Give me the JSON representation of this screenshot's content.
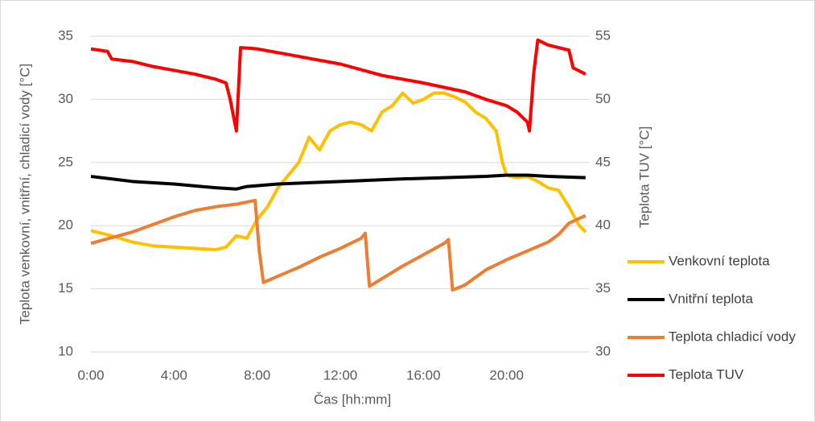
{
  "chart_data": {
    "type": "line",
    "xlabel": "Čas [hh:mm]",
    "ylabel": "Teplota venkovní, vnitřní, chladicí vody [°C]",
    "y2label": "Teplota TUV [°C]",
    "xlim": [
      0,
      24
    ],
    "xticks": [
      {
        "value": 0,
        "label": "0:00"
      },
      {
        "value": 4,
        "label": "4:00"
      },
      {
        "value": 8,
        "label": "8:00"
      },
      {
        "value": 12,
        "label": "12:00"
      },
      {
        "value": 16,
        "label": "16:00"
      },
      {
        "value": 20,
        "label": "20:00"
      }
    ],
    "ylim": [
      10,
      35
    ],
    "yticks": [
      10,
      15,
      20,
      25,
      30,
      35
    ],
    "y2lim": [
      30,
      55
    ],
    "y2ticks": [
      30,
      35,
      40,
      45,
      50,
      55
    ],
    "grid": true,
    "legend": "right",
    "series": [
      {
        "name": "Venkovní teplota",
        "color": "#ffc000",
        "x": [
          0,
          1,
          2,
          3,
          4,
          5,
          6,
          6.5,
          7,
          7.5,
          8,
          8.5,
          9,
          9.5,
          10,
          10.5,
          11,
          11.5,
          12,
          12.5,
          13,
          13.5,
          14,
          14.5,
          15,
          15.5,
          16,
          16.5,
          17,
          17.5,
          18,
          18.5,
          19,
          19.5,
          19.8,
          20,
          20.5,
          21,
          21.5,
          22,
          22.5,
          23,
          23.5,
          23.8
        ],
        "values": [
          19.6,
          19.2,
          18.7,
          18.4,
          18.3,
          18.2,
          18.1,
          18.3,
          19.2,
          19.0,
          20.5,
          21.5,
          23.0,
          24.0,
          25.0,
          27.0,
          26.0,
          27.5,
          28.0,
          28.2,
          28.0,
          27.5,
          29.0,
          29.5,
          30.5,
          29.7,
          30.0,
          30.5,
          30.5,
          30.2,
          29.8,
          29.0,
          28.5,
          27.5,
          25.0,
          24.0,
          23.8,
          23.9,
          23.5,
          23.0,
          22.8,
          21.5,
          20.0,
          19.5
        ]
      },
      {
        "name": "Vnitřní teplota",
        "color": "#000000",
        "x": [
          0,
          2,
          4,
          6,
          7,
          7.5,
          9,
          12,
          15,
          17,
          19,
          20,
          21,
          22,
          23.8
        ],
        "values": [
          23.9,
          23.5,
          23.3,
          23.0,
          22.9,
          23.1,
          23.3,
          23.5,
          23.7,
          23.8,
          23.9,
          24.0,
          24.0,
          23.9,
          23.8
        ]
      },
      {
        "name": "Teplota chladicí vody",
        "color": "#ed7d31",
        "x": [
          0,
          2,
          4,
          5,
          6,
          7,
          7.9,
          8.1,
          8.3,
          9,
          10,
          11,
          12,
          13,
          13.2,
          13.4,
          14,
          15,
          16,
          17,
          17.2,
          17.4,
          18,
          19,
          20,
          21,
          22,
          22.5,
          23,
          23.8
        ],
        "values": [
          18.6,
          19.5,
          20.7,
          21.2,
          21.5,
          21.7,
          22.0,
          18.0,
          15.5,
          16.0,
          16.7,
          17.5,
          18.2,
          19.0,
          19.4,
          15.2,
          15.8,
          16.8,
          17.7,
          18.6,
          18.9,
          14.9,
          15.3,
          16.5,
          17.3,
          18.0,
          18.7,
          19.3,
          20.2,
          20.8
        ]
      },
      {
        "name": "Teplota TUV",
        "color": "#ff0000",
        "axis": "y2",
        "x": [
          0,
          0.8,
          1,
          2,
          3,
          4,
          5,
          6,
          6.5,
          6.7,
          7,
          7.2,
          8,
          10,
          12,
          14,
          16,
          18,
          19,
          20,
          20.5,
          21,
          21.1,
          21.3,
          21.5,
          22,
          23,
          23.2,
          23.8
        ],
        "values": [
          54.0,
          53.8,
          53.2,
          53.0,
          52.6,
          52.3,
          52.0,
          51.6,
          51.3,
          50.0,
          47.5,
          54.1,
          54.0,
          53.4,
          52.8,
          51.9,
          51.3,
          50.6,
          50.0,
          49.5,
          49.0,
          48.2,
          47.5,
          52.0,
          54.7,
          54.3,
          53.9,
          52.5,
          52.0
        ]
      }
    ]
  }
}
